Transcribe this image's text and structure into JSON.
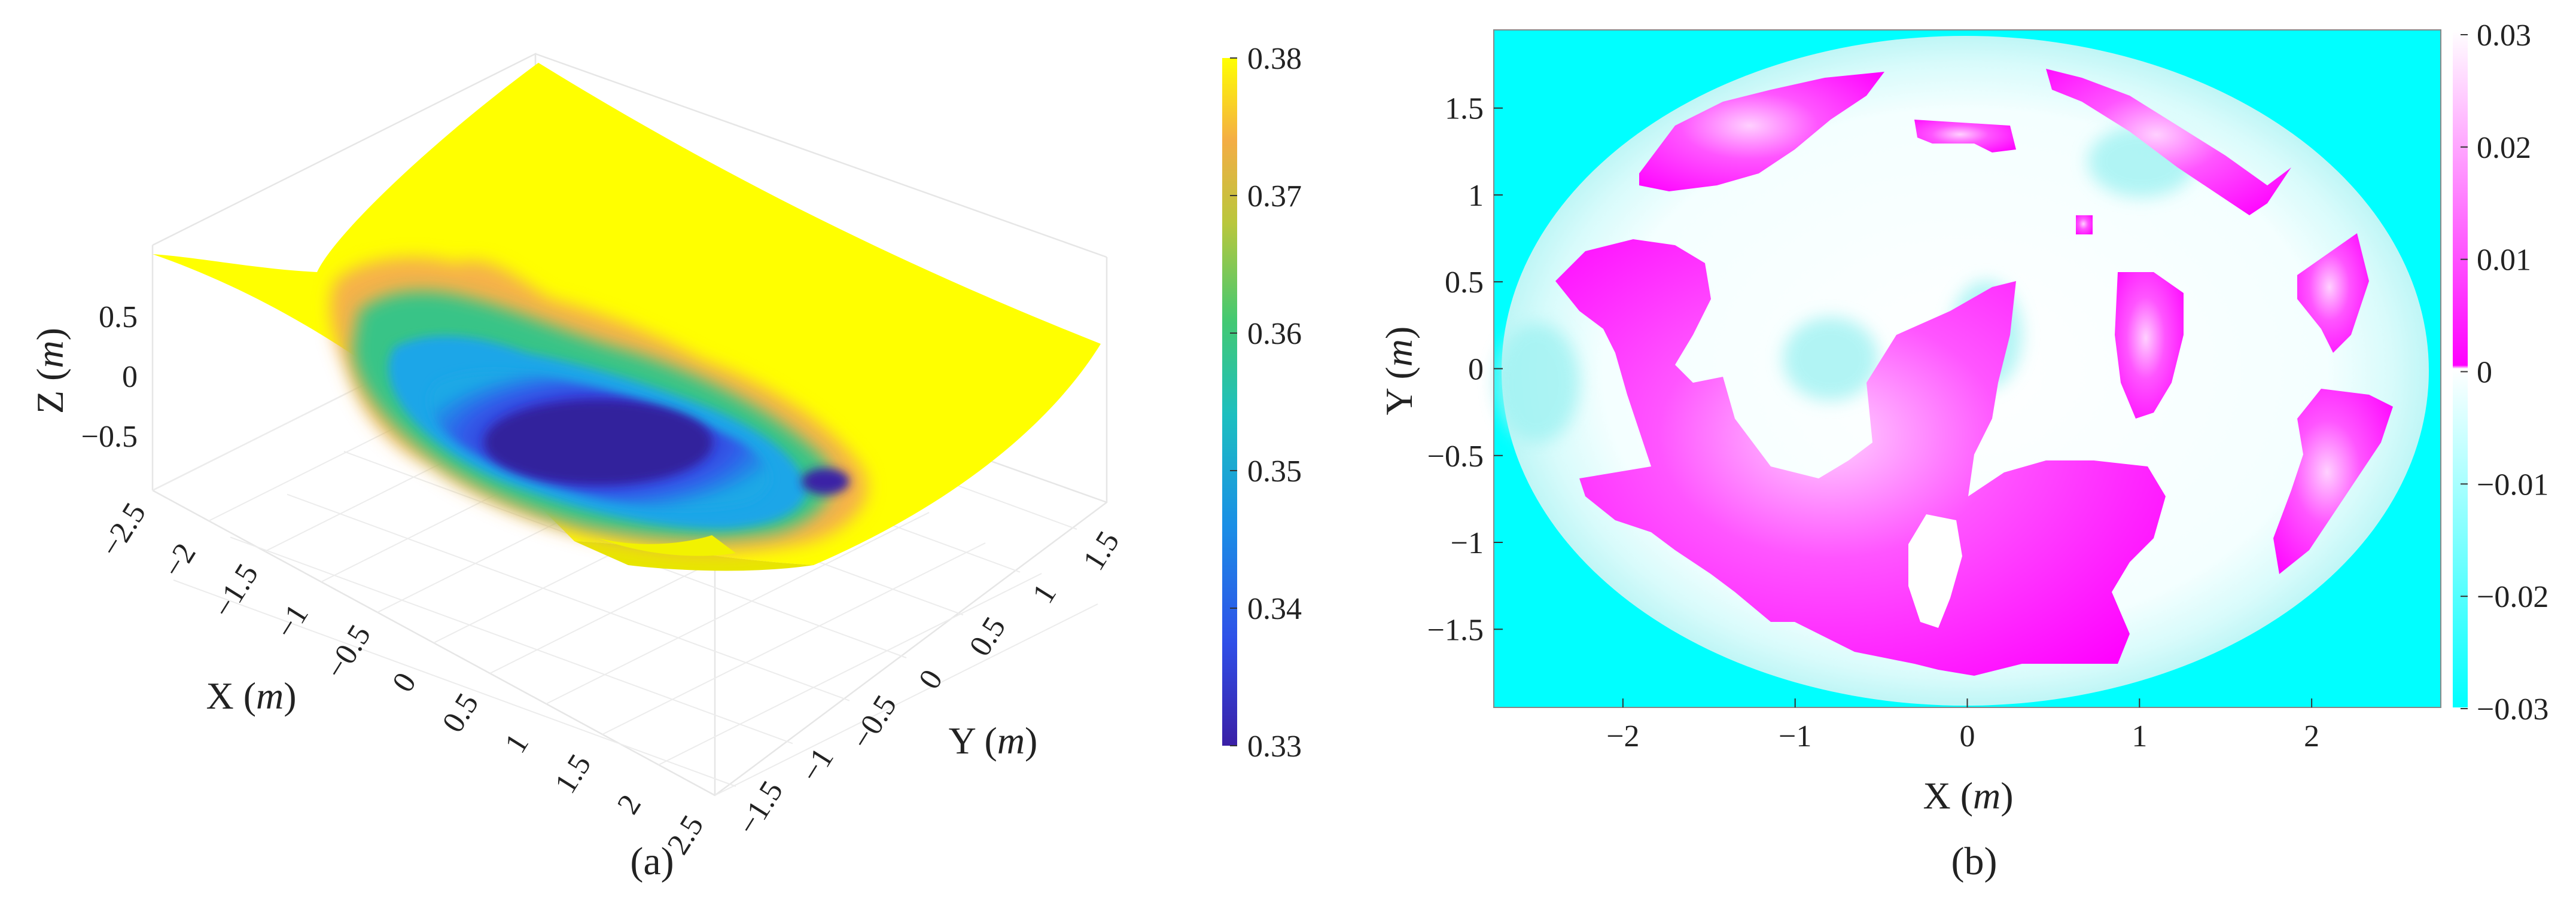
{
  "panels": {
    "a": {
      "label": "(a)"
    },
    "b": {
      "label": "(b)"
    }
  },
  "chart_data": [
    {
      "type": "surface3d",
      "panel": "(a)",
      "xlabel_main": "X (",
      "xlabel_unit": "m",
      "xlabel_close": ")",
      "ylabel_main": "Y (",
      "ylabel_unit": "m",
      "ylabel_close": ")",
      "zlabel_main": "Z (",
      "zlabel_unit": "m",
      "zlabel_close": ")",
      "x_ticks": [
        "-2.5",
        "-2",
        "-1.5",
        "-1",
        "-0.5",
        "0",
        "0.5",
        "1",
        "1.5",
        "2",
        "2.5"
      ],
      "y_ticks": [
        "-1.5",
        "-1",
        "-0.5",
        "0",
        "0.5",
        "1",
        "1.5"
      ],
      "z_ticks": [
        "0.5",
        "0",
        "-0.5"
      ],
      "xlim": [
        -2.5,
        2.5
      ],
      "ylim": [
        -1.5,
        1.5
      ],
      "colorbar": {
        "ticks": [
          "0.38",
          "0.37",
          "0.36",
          "0.35",
          "0.34",
          "0.33"
        ],
        "range": [
          0.33,
          0.38
        ],
        "colormap": [
          "#3a1fa6",
          "#2f4fe8",
          "#1aa8e6",
          "#22c7a8",
          "#6fcf4a",
          "#d8c23c",
          "#f7a94a",
          "#ffff00"
        ]
      },
      "grid": true
    },
    {
      "type": "heatmap",
      "panel": "(b)",
      "xlabel_main": "X (",
      "xlabel_unit": "m",
      "xlabel_close": ")",
      "ylabel_main": "Y (",
      "ylabel_unit": "m",
      "ylabel_close": ")",
      "x_ticks": [
        "-2",
        "-1",
        "0",
        "1",
        "2"
      ],
      "y_ticks": [
        "1.5",
        "1",
        "0.5",
        "0",
        "-0.5",
        "-1",
        "-1.5"
      ],
      "xlim": [
        -2.75,
        2.75
      ],
      "ylim": [
        -1.95,
        1.95
      ],
      "colorbar": {
        "ticks": [
          "0.03",
          "0.02",
          "0.01",
          "0",
          "-0.01",
          "-0.02",
          "-0.03"
        ],
        "range": [
          -0.03,
          0.03
        ],
        "colormap_negative": [
          "#00ffff",
          "#ffffff"
        ],
        "colormap_positive": [
          "#ffffff",
          "#ff00ff"
        ]
      },
      "grid": false
    }
  ]
}
